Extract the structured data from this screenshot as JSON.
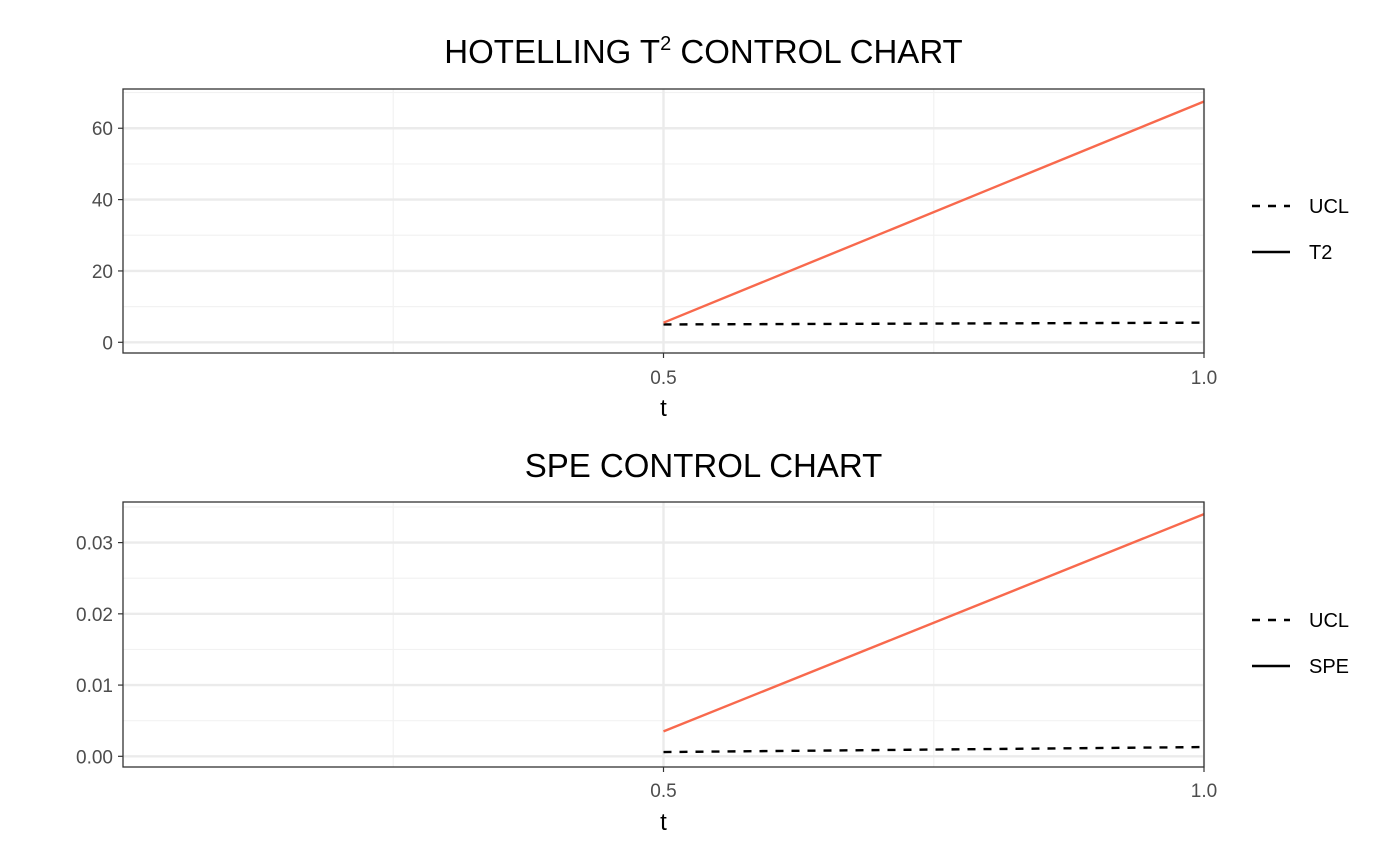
{
  "chart_data": [
    {
      "type": "line",
      "title": "HOTELLING T",
      "title_superscript": "2",
      "title_suffix": " CONTROL CHART",
      "xlabel": "t",
      "ylabel": "",
      "xlim": [
        0,
        1
      ],
      "ylim": [
        -3,
        71
      ],
      "x_ticks": [
        0.5,
        1.0
      ],
      "x_tick_labels": [
        "0.5",
        "1.0"
      ],
      "y_ticks": [
        0,
        20,
        40,
        60
      ],
      "y_tick_labels": [
        "0",
        "20",
        "40",
        "60"
      ],
      "grid": true,
      "legend_position": "right",
      "series": [
        {
          "name": "UCL",
          "style": "dashed",
          "color": "#000000",
          "x": [
            0.5,
            1.0
          ],
          "y": [
            5.0,
            5.5
          ]
        },
        {
          "name": "T2",
          "style": "solid",
          "color": "#f8694d",
          "x": [
            0.5,
            1.0
          ],
          "y": [
            5.5,
            67.5
          ]
        }
      ],
      "legend": [
        {
          "label": "UCL",
          "style": "dashed"
        },
        {
          "label": "T2",
          "style": "solid"
        }
      ]
    },
    {
      "type": "line",
      "title": "SPE CONTROL CHART",
      "title_superscript": "",
      "title_suffix": "",
      "xlabel": "t",
      "ylabel": "",
      "xlim": [
        0,
        1
      ],
      "ylim": [
        -0.0015,
        0.0357
      ],
      "x_ticks": [
        0.5,
        1.0
      ],
      "x_tick_labels": [
        "0.5",
        "1.0"
      ],
      "y_ticks": [
        0.0,
        0.01,
        0.02,
        0.03
      ],
      "y_tick_labels": [
        "0.00",
        "0.01",
        "0.02",
        "0.03"
      ],
      "grid": true,
      "legend_position": "right",
      "series": [
        {
          "name": "UCL",
          "style": "dashed",
          "color": "#000000",
          "x": [
            0.5,
            1.0
          ],
          "y": [
            0.0006,
            0.0013
          ]
        },
        {
          "name": "SPE",
          "style": "solid",
          "color": "#f8694d",
          "x": [
            0.5,
            1.0
          ],
          "y": [
            0.0035,
            0.034
          ]
        }
      ],
      "legend": [
        {
          "label": "UCL",
          "style": "dashed"
        },
        {
          "label": "SPE",
          "style": "solid"
        }
      ]
    }
  ]
}
